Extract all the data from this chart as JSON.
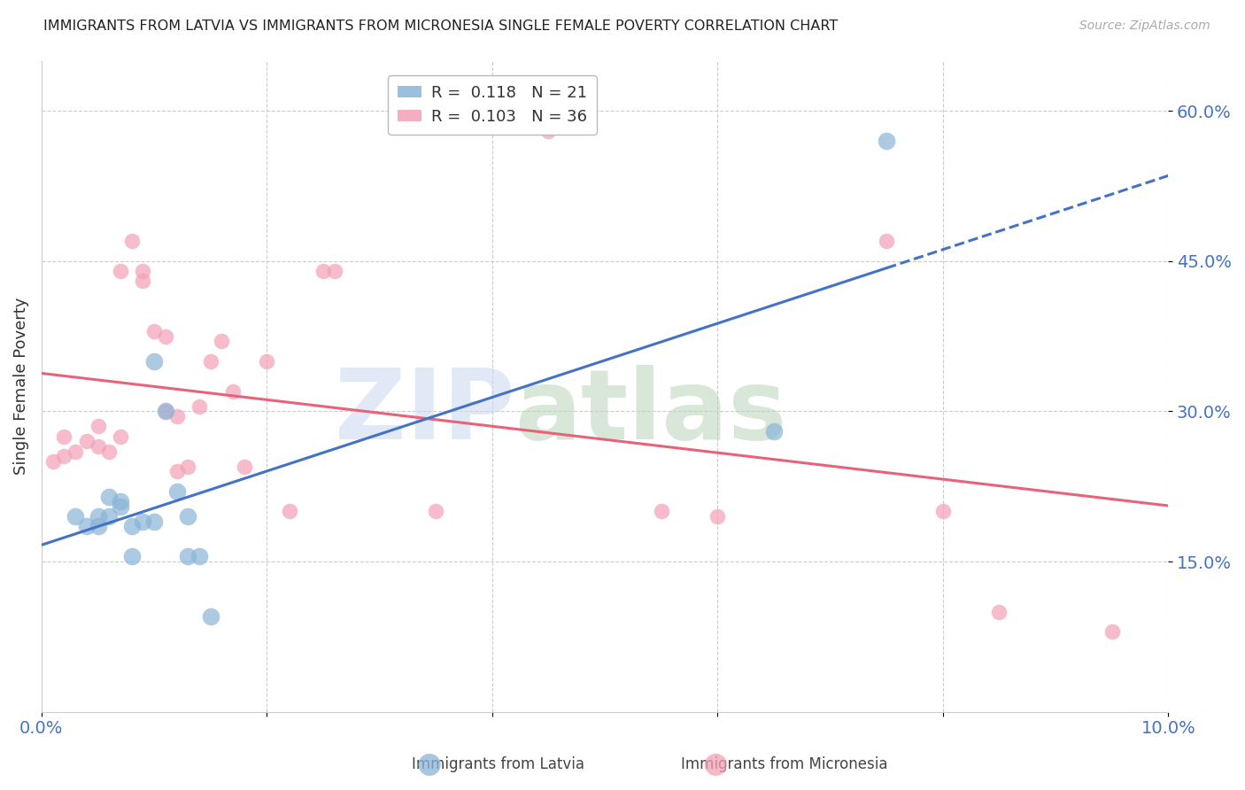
{
  "title": "IMMIGRANTS FROM LATVIA VS IMMIGRANTS FROM MICRONESIA SINGLE FEMALE POVERTY CORRELATION CHART",
  "source": "Source: ZipAtlas.com",
  "ylabel": "Single Female Poverty",
  "xlim": [
    0.0,
    0.1
  ],
  "ylim": [
    0.0,
    0.65
  ],
  "yticks": [
    0.15,
    0.3,
    0.45,
    0.6
  ],
  "ytick_labels": [
    "15.0%",
    "30.0%",
    "45.0%",
    "60.0%"
  ],
  "xticks": [
    0.0,
    0.02,
    0.04,
    0.06,
    0.08,
    0.1
  ],
  "xtick_labels": [
    "0.0%",
    "",
    "",
    "",
    "",
    "10.0%"
  ],
  "legend_R_latvia": "R =  0.118",
  "legend_N_latvia": "N = 21",
  "legend_R_micronesia": "R =  0.103",
  "legend_N_micronesia": "N = 36",
  "latvia_color": "#8ab4d8",
  "micronesia_color": "#f4a0b5",
  "trendline_latvia_color": "#4472c4",
  "trendline_micronesia_color": "#e8637a",
  "background_color": "#ffffff",
  "title_color": "#222222",
  "axis_label_color": "#4472c4",
  "latvia_x": [
    0.003,
    0.004,
    0.005,
    0.005,
    0.006,
    0.006,
    0.007,
    0.007,
    0.008,
    0.008,
    0.009,
    0.01,
    0.01,
    0.011,
    0.012,
    0.013,
    0.013,
    0.014,
    0.015,
    0.065,
    0.075
  ],
  "latvia_y": [
    0.195,
    0.185,
    0.195,
    0.185,
    0.195,
    0.215,
    0.205,
    0.21,
    0.185,
    0.155,
    0.19,
    0.19,
    0.35,
    0.3,
    0.22,
    0.195,
    0.155,
    0.155,
    0.095,
    0.28,
    0.57
  ],
  "micronesia_x": [
    0.001,
    0.002,
    0.002,
    0.003,
    0.004,
    0.005,
    0.005,
    0.006,
    0.007,
    0.007,
    0.008,
    0.009,
    0.009,
    0.01,
    0.011,
    0.011,
    0.012,
    0.012,
    0.013,
    0.014,
    0.015,
    0.016,
    0.017,
    0.018,
    0.02,
    0.022,
    0.025,
    0.026,
    0.035,
    0.045,
    0.055,
    0.06,
    0.075,
    0.08,
    0.085,
    0.095
  ],
  "micronesia_y": [
    0.25,
    0.255,
    0.275,
    0.26,
    0.27,
    0.265,
    0.285,
    0.26,
    0.275,
    0.44,
    0.47,
    0.44,
    0.43,
    0.38,
    0.375,
    0.3,
    0.295,
    0.24,
    0.245,
    0.305,
    0.35,
    0.37,
    0.32,
    0.245,
    0.35,
    0.2,
    0.44,
    0.44,
    0.2,
    0.58,
    0.2,
    0.195,
    0.47,
    0.2,
    0.1,
    0.08
  ],
  "marker_size_latvia": 200,
  "marker_size_micronesia": 160
}
